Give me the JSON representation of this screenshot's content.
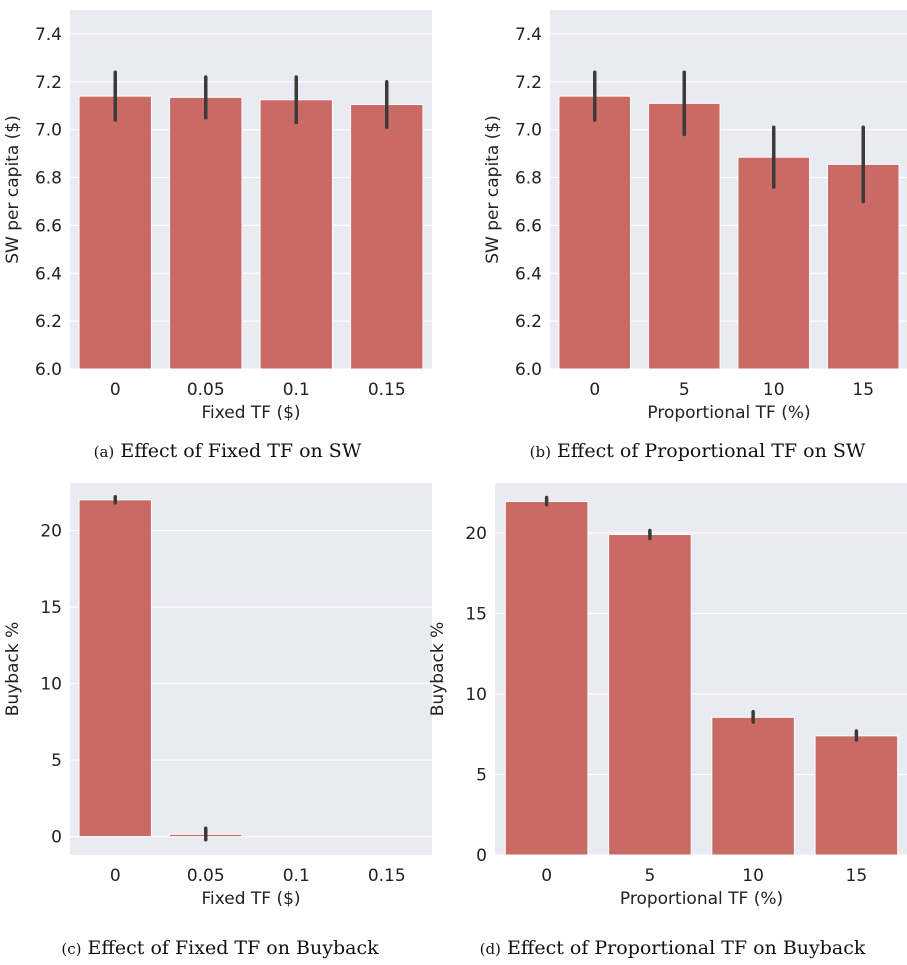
{
  "colors": {
    "bar": "#c96b64",
    "plot_background": "#eaeaf2",
    "grid": "#ffffff",
    "error_bar": "#3b3b3b"
  },
  "captions": [
    {
      "tag": "(a)",
      "text": "Effect of Fixed TF on SW"
    },
    {
      "tag": "(b)",
      "text": "Effect of Proportional TF on SW"
    },
    {
      "tag": "(c)",
      "text": "Effect of Fixed TF on Buyback"
    },
    {
      "tag": "(d)",
      "text": "Effect of Proportional TF on Buyback"
    }
  ],
  "chart_data": [
    {
      "type": "bar",
      "categories": [
        "0",
        "0.05",
        "0.1",
        "0.15"
      ],
      "values": [
        7.14,
        7.135,
        7.125,
        7.105
      ],
      "error_low": [
        7.04,
        7.05,
        7.03,
        7.01
      ],
      "error_high": [
        7.24,
        7.22,
        7.22,
        7.2
      ],
      "xlabel": "Fixed TF ($)",
      "ylabel": "SW per capita ($)",
      "ylim": [
        6.0,
        7.5
      ],
      "yticks": [
        6.0,
        6.2,
        6.4,
        6.6,
        6.8,
        7.0,
        7.2,
        7.4
      ],
      "ytick_labels": [
        "6.0",
        "6.2",
        "6.4",
        "6.6",
        "6.8",
        "7.0",
        "7.2",
        "7.4"
      ],
      "grid": true
    },
    {
      "type": "bar",
      "categories": [
        "0",
        "5",
        "10",
        "15"
      ],
      "values": [
        7.14,
        7.11,
        6.885,
        6.855
      ],
      "error_low": [
        7.04,
        6.98,
        6.76,
        6.7
      ],
      "error_high": [
        7.24,
        7.24,
        7.01,
        7.01
      ],
      "xlabel": "Proportional TF (%)",
      "ylabel": "SW per capita ($)",
      "ylim": [
        6.0,
        7.5
      ],
      "yticks": [
        6.0,
        6.2,
        6.4,
        6.6,
        6.8,
        7.0,
        7.2,
        7.4
      ],
      "ytick_labels": [
        "6.0",
        "6.2",
        "6.4",
        "6.6",
        "6.8",
        "7.0",
        "7.2",
        "7.4"
      ],
      "grid": true
    },
    {
      "type": "bar",
      "categories": [
        "0",
        "0.05",
        "0.1",
        "0.15"
      ],
      "values": [
        22.0,
        0.15,
        0.0,
        0.0
      ],
      "error_low": [
        21.8,
        -0.2,
        0.0,
        0.0
      ],
      "error_high": [
        22.2,
        0.55,
        0.0,
        0.0
      ],
      "xlabel": "Fixed TF ($)",
      "ylabel": "Buyback %",
      "ylim": [
        -1.2,
        23.1
      ],
      "yticks": [
        0,
        5,
        10,
        15,
        20
      ],
      "ytick_labels": [
        "0",
        "5",
        "10",
        "15",
        "20"
      ],
      "grid": true
    },
    {
      "type": "bar",
      "categories": [
        "0",
        "5",
        "10",
        "15"
      ],
      "values": [
        21.95,
        19.9,
        8.55,
        7.4
      ],
      "error_low": [
        21.75,
        19.65,
        8.25,
        7.15
      ],
      "error_high": [
        22.2,
        20.15,
        8.9,
        7.7
      ],
      "xlabel": "Proportional TF (%)",
      "ylabel": "Buyback %",
      "ylim": [
        0,
        23.1
      ],
      "yticks": [
        0,
        5,
        10,
        15,
        20
      ],
      "ytick_labels": [
        "0",
        "5",
        "10",
        "15",
        "20"
      ],
      "grid": true
    }
  ]
}
